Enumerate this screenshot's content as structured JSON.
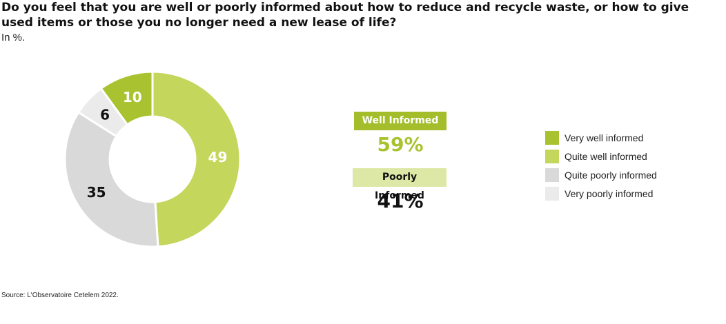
{
  "title": "Do you feel that you are well or poorly informed about how to reduce and recycle waste, or how to give used items or those you no longer need a new lease of life?",
  "subtitle": "In %.",
  "summary": {
    "well_label": "Well Informed",
    "well_value": "59%",
    "poor_label": "Poorly Informed",
    "poor_value": "41%"
  },
  "source": "Source: L'Observatoire Cetelem 2022.",
  "chart_data": {
    "type": "pie",
    "donut": true,
    "title": "Do you feel that you are well or poorly informed about how to reduce and recycle waste, or how to give used items or those you no longer need a new lease of life?",
    "unit": "%",
    "legend_position": "right",
    "slices": [
      {
        "name": "Quite well informed",
        "value": 49,
        "color": "#c5d65c",
        "label_color": "#ffffff"
      },
      {
        "name": "Quite poorly informed",
        "value": 35,
        "color": "#d9d9d9",
        "label_color": "#111111"
      },
      {
        "name": "Very poorly informed",
        "value": 6,
        "color": "#ebebeb",
        "label_color": "#111111"
      },
      {
        "name": "Very well informed",
        "value": 10,
        "color": "#a8c32f",
        "label_color": "#ffffff"
      }
    ],
    "legend": [
      {
        "name": "Very well informed",
        "color": "#a8c32f"
      },
      {
        "name": "Quite well informed",
        "color": "#c5d65c"
      },
      {
        "name": "Quite poorly informed",
        "color": "#d9d9d9"
      },
      {
        "name": "Very poorly informed",
        "color": "#ebebeb"
      }
    ]
  }
}
